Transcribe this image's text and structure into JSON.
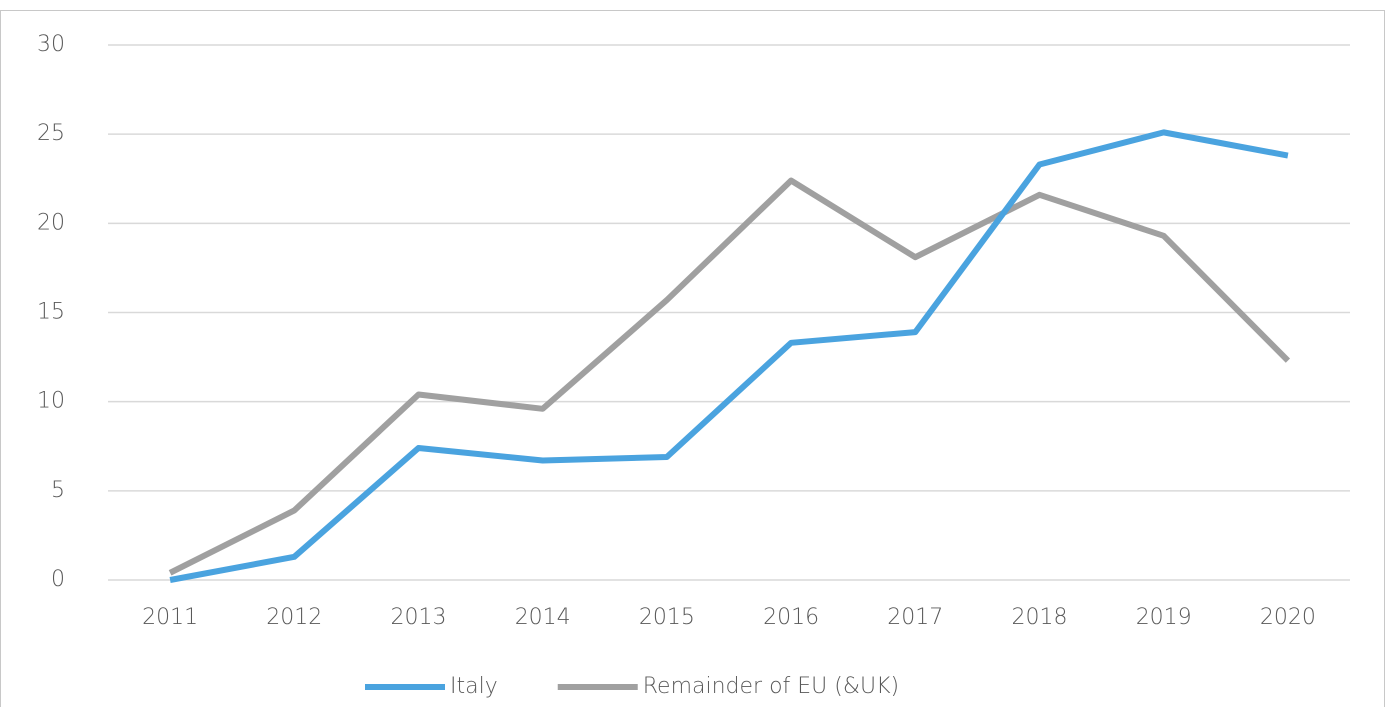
{
  "chart_data": {
    "type": "line",
    "categories": [
      "2011",
      "2012",
      "2013",
      "2014",
      "2015",
      "2016",
      "2017",
      "2018",
      "2019",
      "2020"
    ],
    "series": [
      {
        "name": "Italy",
        "color": "#4aa3df",
        "values": [
          0,
          1.3,
          7.4,
          6.7,
          6.9,
          13.3,
          13.9,
          23.3,
          25.1,
          23.8
        ]
      },
      {
        "name": "Remainder of EU (&UK)",
        "color": "#a0a0a0",
        "values": [
          0.4,
          3.9,
          10.4,
          9.6,
          15.7,
          22.4,
          18.1,
          21.6,
          19.3,
          12.3
        ]
      }
    ],
    "ylim": [
      0,
      30
    ],
    "yticks": [
      0,
      5,
      10,
      15,
      20,
      25,
      30
    ],
    "grid": true,
    "legend": "bottom"
  }
}
